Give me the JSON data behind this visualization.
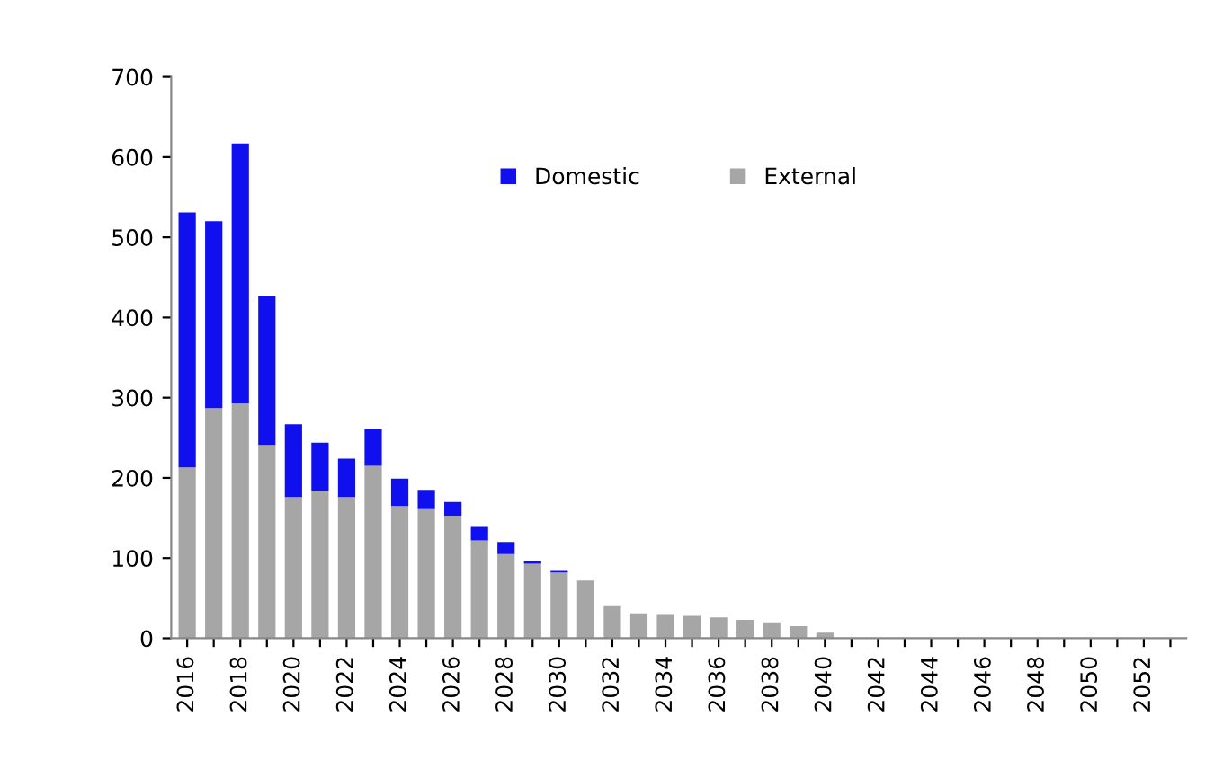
{
  "chart_data": {
    "type": "bar",
    "stacked": true,
    "categories": [
      "2016",
      null,
      "2018",
      null,
      "2020",
      null,
      "2022",
      null,
      "2024",
      null,
      "2026",
      null,
      "2028",
      null,
      "2030",
      null,
      "2032",
      null,
      "2034",
      null,
      "2036",
      null,
      "2038",
      null,
      "2040",
      null,
      "2042",
      null,
      "2044",
      null,
      "2046",
      null,
      "2048",
      null,
      "2050",
      null,
      "2052",
      null
    ],
    "series": [
      {
        "name": "External",
        "color": "#a6a6a6",
        "values": [
          213,
          287,
          293,
          241,
          176,
          184,
          176,
          215,
          165,
          161,
          153,
          122,
          105,
          93,
          82,
          72,
          40,
          31,
          29,
          28,
          26,
          23,
          20,
          15,
          7,
          0,
          0,
          0,
          0,
          0,
          0,
          0,
          0,
          0,
          0,
          0,
          0,
          0
        ]
      },
      {
        "name": "Domestic",
        "color": "#1010ee",
        "values": [
          318,
          233,
          324,
          186,
          91,
          60,
          48,
          46,
          34,
          24,
          17,
          17,
          15,
          3,
          2,
          0,
          0,
          0,
          0,
          0,
          0,
          0,
          0,
          0,
          0,
          0,
          0,
          0,
          0,
          0,
          0,
          0,
          0,
          0,
          0,
          0,
          0,
          0
        ]
      }
    ],
    "ylim": [
      0,
      700
    ],
    "yticks": [
      0,
      100,
      200,
      300,
      400,
      500,
      600,
      700
    ],
    "grid": false,
    "legend": "top"
  }
}
